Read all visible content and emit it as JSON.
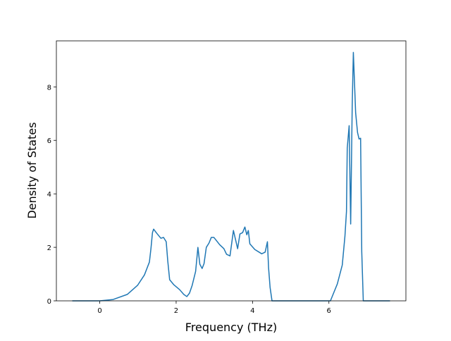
{
  "chart_data": {
    "type": "line",
    "x_label": "Frequency (THz)",
    "y_label": "Density of States",
    "xlim": [
      -1.136,
      8.016
    ],
    "ylim": [
      0,
      9.72
    ],
    "xticks": [
      0,
      2,
      4,
      6
    ],
    "yticks": [
      0,
      2,
      4,
      6,
      8
    ],
    "series": [
      {
        "color": "#1f77b4",
        "x": [
          -0.72,
          0,
          0.35,
          0.72,
          0.99,
          1.17,
          1.3,
          1.34,
          1.38,
          1.41,
          1.49,
          1.6,
          1.67,
          1.74,
          1.78,
          1.83,
          1.94,
          2.09,
          2.2,
          2.28,
          2.35,
          2.42,
          2.51,
          2.57,
          2.62,
          2.68,
          2.73,
          2.79,
          2.86,
          2.92,
          2.99,
          3.14,
          3.25,
          3.32,
          3.41,
          3.5,
          3.61,
          3.67,
          3.74,
          3.8,
          3.85,
          3.89,
          3.93,
          4.06,
          4.24,
          4.33,
          4.39,
          4.42,
          4.46,
          4.51,
          6.04,
          6.22,
          6.35,
          6.42,
          6.46,
          6.48,
          6.53,
          6.57,
          6.61,
          6.64,
          6.7,
          6.75,
          6.79,
          6.83,
          6.86,
          6.9,
          7.6
        ],
        "values": [
          0,
          0,
          0.05,
          0.24,
          0.58,
          0.97,
          1.45,
          1.95,
          2.55,
          2.68,
          2.53,
          2.34,
          2.37,
          2.21,
          1.5,
          0.79,
          0.6,
          0.42,
          0.24,
          0.16,
          0.29,
          0.58,
          1.1,
          2.0,
          1.37,
          1.21,
          1.39,
          2.0,
          2.16,
          2.37,
          2.37,
          2.1,
          1.95,
          1.74,
          1.68,
          2.63,
          1.95,
          2.5,
          2.55,
          2.76,
          2.47,
          2.63,
          2.13,
          1.92,
          1.76,
          1.82,
          2.21,
          1.24,
          0.5,
          0,
          0,
          0.63,
          1.34,
          2.42,
          3.34,
          5.71,
          6.55,
          2.87,
          7.29,
          9.29,
          7.03,
          6.29,
          6.05,
          6.08,
          1.84,
          0,
          0
        ]
      }
    ]
  }
}
